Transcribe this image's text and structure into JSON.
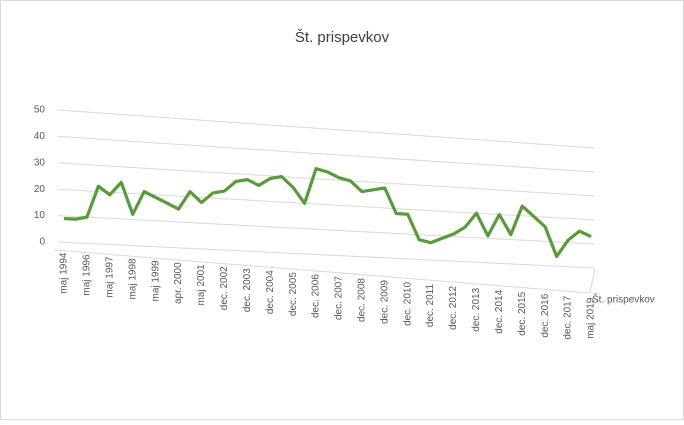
{
  "chart_data": {
    "type": "line",
    "title": "Št. prispevkov",
    "categories": [
      "maj 1994",
      null,
      "maj 1996",
      null,
      "maj 1997",
      null,
      "maj 1998",
      null,
      "maj 1999",
      null,
      "apr. 2000",
      null,
      "maj 2001",
      null,
      "dec. 2002",
      null,
      "dec. 2003",
      null,
      "dec. 2004",
      null,
      "dec. 2005",
      null,
      "dec. 2006",
      null,
      "dec. 2007",
      null,
      "dec. 2008",
      null,
      "dec. 2009",
      null,
      "dec. 2010",
      null,
      "dec. 2011",
      null,
      "dec. 2012",
      null,
      "dec. 2013",
      null,
      "dec. 2014",
      null,
      "dec. 2015",
      null,
      "dec. 2016",
      null,
      "dec. 2017",
      null,
      "maj 2019"
    ],
    "series": [
      {
        "name": "Št. prispevkov",
        "color": "#5a9a3c",
        "values": [
          9,
          9,
          10,
          22,
          19,
          24,
          12,
          21,
          19,
          17,
          15,
          22,
          18,
          22,
          23,
          27,
          28,
          26,
          29,
          30,
          26,
          20,
          34,
          33,
          31,
          30,
          26,
          27,
          28,
          18,
          18,
          8,
          7,
          9,
          11,
          14,
          20,
          11,
          20,
          12,
          24,
          20,
          16,
          4,
          11,
          15,
          13
        ]
      }
    ],
    "ylim": [
      0,
      50
    ],
    "yticks": [
      0,
      10,
      20,
      30,
      40,
      50
    ],
    "grid": true
  }
}
